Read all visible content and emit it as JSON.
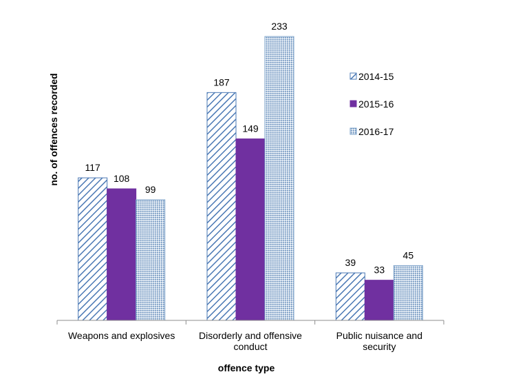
{
  "chart_data": {
    "type": "bar",
    "title": "",
    "xlabel": "offence type",
    "ylabel": "no. of offences recorded",
    "ylim": [
      0,
      250
    ],
    "grid": false,
    "legend_position": "right",
    "categories": [
      [
        "Weapons and explosives"
      ],
      [
        "Disorderly and offensive",
        "conduct"
      ],
      [
        "Public nuisance and",
        "security"
      ]
    ],
    "series": [
      {
        "name": "2014-15",
        "values": [
          117,
          187,
          39
        ],
        "pattern": "diagonal-hatch",
        "color": "#4a78b4"
      },
      {
        "name": "2015-16",
        "values": [
          108,
          149,
          33
        ],
        "pattern": "solid",
        "color": "#7030a0"
      },
      {
        "name": "2016-17",
        "values": [
          99,
          233,
          45
        ],
        "pattern": "dotted",
        "color": "#7aa0c8"
      }
    ]
  }
}
